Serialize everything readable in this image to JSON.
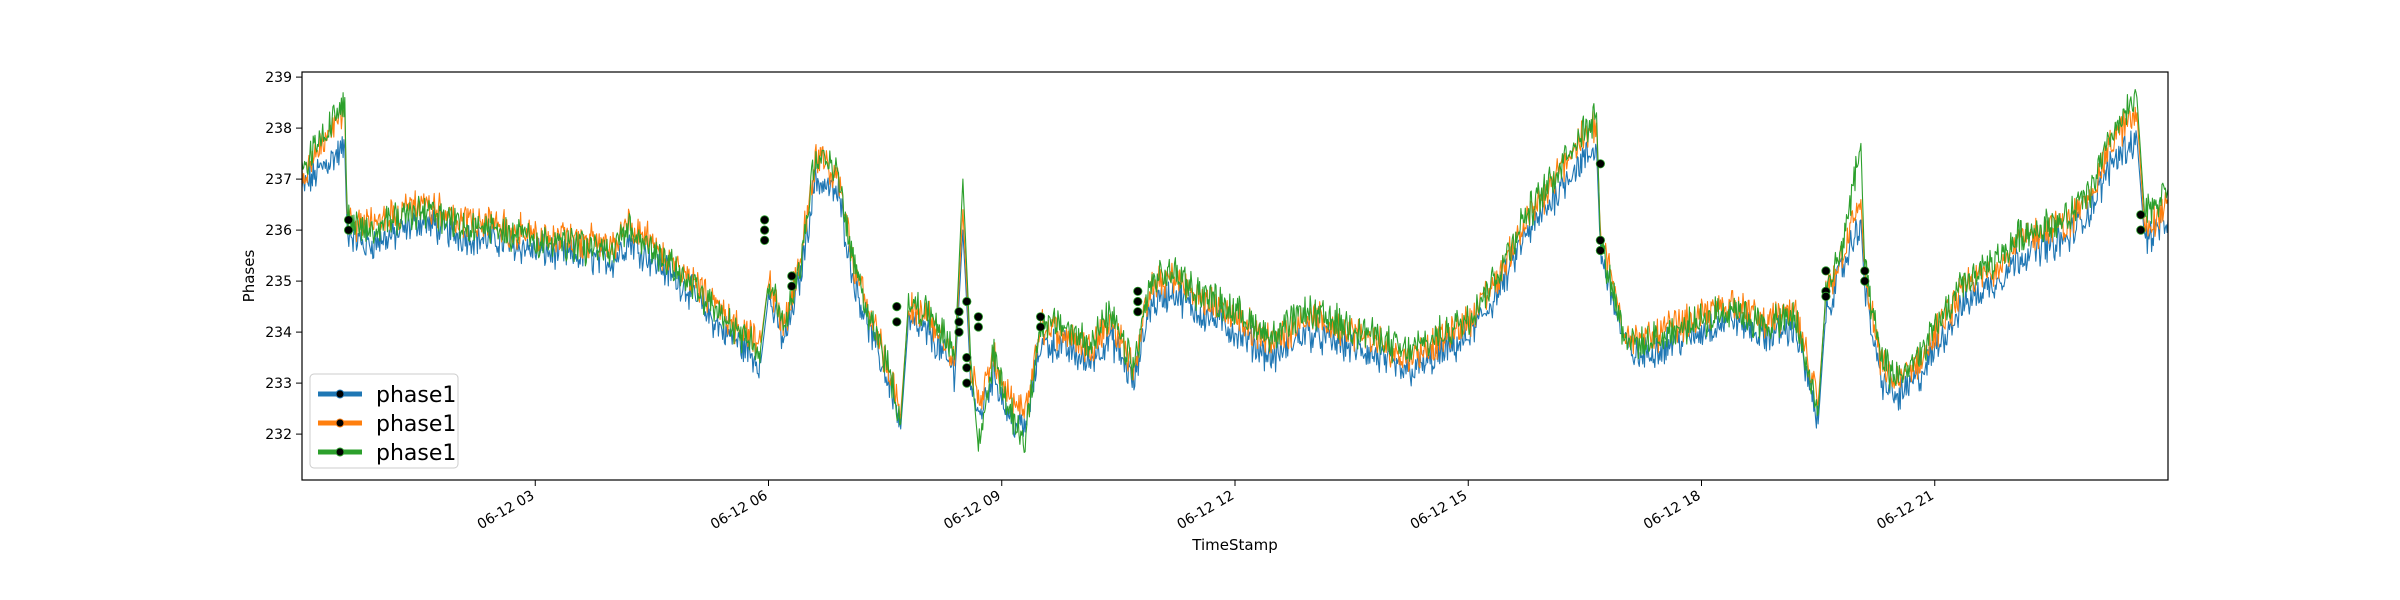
{
  "chart_data": {
    "type": "line",
    "xlabel": "TimeStamp",
    "ylabel": "Phases",
    "x_range_hours": [
      0,
      24
    ],
    "ylim": [
      231.1,
      239.1
    ],
    "x_ticks": [
      {
        "hour": 3,
        "label": "06-12 03"
      },
      {
        "hour": 6,
        "label": "06-12 06"
      },
      {
        "hour": 9,
        "label": "06-12 09"
      },
      {
        "hour": 12,
        "label": "06-12 12"
      },
      {
        "hour": 15,
        "label": "06-12 15"
      },
      {
        "hour": 18,
        "label": "06-12 18"
      },
      {
        "hour": 21,
        "label": "06-12 21"
      }
    ],
    "y_ticks": [
      232,
      233,
      234,
      235,
      236,
      237,
      238,
      239
    ],
    "grid": false,
    "legend_position": "lower-left",
    "series": [
      {
        "name": "phase1",
        "color": "#1f77b4",
        "points": [
          [
            0,
            236.8
          ],
          [
            0.3,
            237.3
          ],
          [
            0.55,
            237.6
          ],
          [
            0.58,
            236.0
          ],
          [
            0.8,
            235.7
          ],
          [
            1.2,
            235.9
          ],
          [
            1.5,
            236.2
          ],
          [
            2,
            235.9
          ],
          [
            2.5,
            235.8
          ],
          [
            3,
            235.6
          ],
          [
            3.5,
            235.5
          ],
          [
            4,
            235.4
          ],
          [
            4.2,
            235.8
          ],
          [
            4.6,
            235.3
          ],
          [
            5,
            234.8
          ],
          [
            5.3,
            234.2
          ],
          [
            5.6,
            233.8
          ],
          [
            5.9,
            233.4
          ],
          [
            6.0,
            234.7
          ],
          [
            6.2,
            233.8
          ],
          [
            6.4,
            235.0
          ],
          [
            6.6,
            237.0
          ],
          [
            6.9,
            236.7
          ],
          [
            7.1,
            235.0
          ],
          [
            7.4,
            233.6
          ],
          [
            7.6,
            232.8
          ],
          [
            7.7,
            232.1
          ],
          [
            7.8,
            234.2
          ],
          [
            8.1,
            233.9
          ],
          [
            8.4,
            233.2
          ],
          [
            8.5,
            236.0
          ],
          [
            8.6,
            233.1
          ],
          [
            8.7,
            232.3
          ],
          [
            8.9,
            233.2
          ],
          [
            9.1,
            232.3
          ],
          [
            9.3,
            232.1
          ],
          [
            9.5,
            233.8
          ],
          [
            9.8,
            233.7
          ],
          [
            10.1,
            233.4
          ],
          [
            10.4,
            233.9
          ],
          [
            10.7,
            233.0
          ],
          [
            10.9,
            234.5
          ],
          [
            11.2,
            234.8
          ],
          [
            11.5,
            234.4
          ],
          [
            11.8,
            234.2
          ],
          [
            12.1,
            233.9
          ],
          [
            12.5,
            233.5
          ],
          [
            12.9,
            234.0
          ],
          [
            13.3,
            233.8
          ],
          [
            13.7,
            233.6
          ],
          [
            14.2,
            233.2
          ],
          [
            14.6,
            233.5
          ],
          [
            15,
            233.9
          ],
          [
            15.4,
            234.8
          ],
          [
            15.7,
            235.8
          ],
          [
            16,
            236.4
          ],
          [
            16.3,
            237.1
          ],
          [
            16.65,
            237.6
          ],
          [
            16.7,
            235.6
          ],
          [
            17.0,
            233.8
          ],
          [
            17.2,
            233.5
          ],
          [
            17.6,
            233.8
          ],
          [
            18,
            234.0
          ],
          [
            18.4,
            234.3
          ],
          [
            18.8,
            233.9
          ],
          [
            19.2,
            234.1
          ],
          [
            19.5,
            232.2
          ],
          [
            19.6,
            234.4
          ],
          [
            19.8,
            235.2
          ],
          [
            20.05,
            236.2
          ],
          [
            20.1,
            234.8
          ],
          [
            20.3,
            233.1
          ],
          [
            20.5,
            232.7
          ],
          [
            20.8,
            233.1
          ],
          [
            21.1,
            233.9
          ],
          [
            21.4,
            234.6
          ],
          [
            21.8,
            235.0
          ],
          [
            22.1,
            235.5
          ],
          [
            22.4,
            235.7
          ],
          [
            22.7,
            235.8
          ],
          [
            23,
            236.4
          ],
          [
            23.3,
            237.4
          ],
          [
            23.6,
            237.8
          ],
          [
            23.7,
            235.8
          ],
          [
            24,
            236.2
          ]
        ]
      },
      {
        "name": "phase1",
        "color": "#ff7f0e",
        "points": [
          [
            0,
            237.0
          ],
          [
            0.3,
            237.7
          ],
          [
            0.55,
            238.3
          ],
          [
            0.58,
            236.2
          ],
          [
            0.8,
            236.1
          ],
          [
            1.2,
            236.3
          ],
          [
            1.5,
            236.5
          ],
          [
            2,
            236.2
          ],
          [
            2.5,
            236.1
          ],
          [
            3,
            235.9
          ],
          [
            3.5,
            235.8
          ],
          [
            4,
            235.7
          ],
          [
            4.2,
            236.1
          ],
          [
            4.6,
            235.6
          ],
          [
            5,
            235.1
          ],
          [
            5.3,
            234.5
          ],
          [
            5.6,
            234.1
          ],
          [
            5.9,
            233.8
          ],
          [
            6.0,
            235.0
          ],
          [
            6.2,
            234.1
          ],
          [
            6.4,
            235.3
          ],
          [
            6.6,
            237.4
          ],
          [
            6.9,
            237.0
          ],
          [
            7.1,
            235.3
          ],
          [
            7.4,
            233.9
          ],
          [
            7.6,
            233.1
          ],
          [
            7.7,
            232.4
          ],
          [
            7.8,
            234.5
          ],
          [
            8.1,
            234.2
          ],
          [
            8.4,
            233.5
          ],
          [
            8.5,
            236.4
          ],
          [
            8.6,
            233.4
          ],
          [
            8.7,
            232.6
          ],
          [
            8.9,
            233.5
          ],
          [
            9.1,
            232.6
          ],
          [
            9.3,
            232.4
          ],
          [
            9.5,
            234.1
          ],
          [
            9.8,
            234.0
          ],
          [
            10.1,
            233.7
          ],
          [
            10.4,
            234.2
          ],
          [
            10.7,
            233.3
          ],
          [
            10.9,
            234.8
          ],
          [
            11.2,
            235.1
          ],
          [
            11.5,
            234.7
          ],
          [
            11.8,
            234.5
          ],
          [
            12.1,
            234.2
          ],
          [
            12.5,
            233.8
          ],
          [
            12.9,
            234.3
          ],
          [
            13.3,
            234.1
          ],
          [
            13.7,
            233.9
          ],
          [
            14.2,
            233.5
          ],
          [
            14.6,
            233.8
          ],
          [
            15,
            234.2
          ],
          [
            15.4,
            235.1
          ],
          [
            15.7,
            236.1
          ],
          [
            16,
            236.7
          ],
          [
            16.3,
            237.5
          ],
          [
            16.65,
            238.1
          ],
          [
            16.7,
            235.9
          ],
          [
            17.0,
            234.1
          ],
          [
            17.2,
            233.8
          ],
          [
            17.6,
            234.1
          ],
          [
            18,
            234.3
          ],
          [
            18.4,
            234.6
          ],
          [
            18.8,
            234.2
          ],
          [
            19.2,
            234.4
          ],
          [
            19.5,
            232.6
          ],
          [
            19.6,
            234.7
          ],
          [
            19.8,
            235.5
          ],
          [
            20.05,
            236.6
          ],
          [
            20.1,
            235.1
          ],
          [
            20.3,
            233.4
          ],
          [
            20.5,
            233.0
          ],
          [
            20.8,
            233.4
          ],
          [
            21.1,
            234.2
          ],
          [
            21.4,
            234.9
          ],
          [
            21.8,
            235.3
          ],
          [
            22.1,
            235.8
          ],
          [
            22.4,
            236.0
          ],
          [
            22.7,
            236.1
          ],
          [
            23,
            236.7
          ],
          [
            23.3,
            237.8
          ],
          [
            23.6,
            238.3
          ],
          [
            23.7,
            236.0
          ],
          [
            24,
            236.5
          ]
        ]
      },
      {
        "name": "phase1",
        "color": "#2ca02c",
        "points": [
          [
            0,
            237.2
          ],
          [
            0.3,
            237.9
          ],
          [
            0.55,
            238.6
          ],
          [
            0.58,
            236.2
          ],
          [
            0.8,
            236.0
          ],
          [
            1.2,
            236.2
          ],
          [
            1.5,
            236.4
          ],
          [
            2,
            236.1
          ],
          [
            2.5,
            236.0
          ],
          [
            3,
            235.8
          ],
          [
            3.5,
            235.7
          ],
          [
            4,
            235.6
          ],
          [
            4.2,
            236.0
          ],
          [
            4.6,
            235.5
          ],
          [
            5,
            235.0
          ],
          [
            5.3,
            234.4
          ],
          [
            5.6,
            234.0
          ],
          [
            5.9,
            233.7
          ],
          [
            6.0,
            235.0
          ],
          [
            6.2,
            234.1
          ],
          [
            6.4,
            235.3
          ],
          [
            6.6,
            237.5
          ],
          [
            6.9,
            237.1
          ],
          [
            7.1,
            235.3
          ],
          [
            7.4,
            233.9
          ],
          [
            7.6,
            233.0
          ],
          [
            7.7,
            232.2
          ],
          [
            7.8,
            234.6
          ],
          [
            8.1,
            234.3
          ],
          [
            8.4,
            233.6
          ],
          [
            8.5,
            237.0
          ],
          [
            8.6,
            233.5
          ],
          [
            8.7,
            231.7
          ],
          [
            8.9,
            233.6
          ],
          [
            9.1,
            232.4
          ],
          [
            9.3,
            231.9
          ],
          [
            9.5,
            234.2
          ],
          [
            9.8,
            234.1
          ],
          [
            10.1,
            233.8
          ],
          [
            10.4,
            234.3
          ],
          [
            10.7,
            233.3
          ],
          [
            10.9,
            234.9
          ],
          [
            11.2,
            235.2
          ],
          [
            11.5,
            234.8
          ],
          [
            11.8,
            234.6
          ],
          [
            12.1,
            234.3
          ],
          [
            12.5,
            233.9
          ],
          [
            12.9,
            234.4
          ],
          [
            13.3,
            234.2
          ],
          [
            13.7,
            234.0
          ],
          [
            14.2,
            233.6
          ],
          [
            14.6,
            233.9
          ],
          [
            15,
            234.3
          ],
          [
            15.4,
            235.2
          ],
          [
            15.7,
            236.2
          ],
          [
            16,
            236.8
          ],
          [
            16.3,
            237.6
          ],
          [
            16.65,
            238.3
          ],
          [
            16.7,
            235.8
          ],
          [
            17.0,
            234.0
          ],
          [
            17.2,
            233.7
          ],
          [
            17.6,
            234.0
          ],
          [
            18,
            234.2
          ],
          [
            18.4,
            234.5
          ],
          [
            18.8,
            234.1
          ],
          [
            19.2,
            234.3
          ],
          [
            19.5,
            232.4
          ],
          [
            19.6,
            234.8
          ],
          [
            19.8,
            235.6
          ],
          [
            20.05,
            237.7
          ],
          [
            20.1,
            235.2
          ],
          [
            20.3,
            233.5
          ],
          [
            20.5,
            233.1
          ],
          [
            20.8,
            233.5
          ],
          [
            21.1,
            234.3
          ],
          [
            21.4,
            235.0
          ],
          [
            21.8,
            235.4
          ],
          [
            22.1,
            235.9
          ],
          [
            22.4,
            236.1
          ],
          [
            22.7,
            236.2
          ],
          [
            23,
            236.8
          ],
          [
            23.3,
            237.9
          ],
          [
            23.6,
            238.6
          ],
          [
            23.7,
            236.3
          ],
          [
            24,
            236.8
          ]
        ]
      }
    ],
    "anomaly_markers": {
      "color": "#000000",
      "points": [
        [
          0.6,
          236.2
        ],
        [
          0.6,
          236.0
        ],
        [
          5.95,
          236.2
        ],
        [
          5.95,
          236.0
        ],
        [
          5.95,
          235.8
        ],
        [
          6.3,
          235.1
        ],
        [
          6.3,
          234.9
        ],
        [
          7.65,
          234.5
        ],
        [
          7.65,
          234.2
        ],
        [
          8.45,
          234.4
        ],
        [
          8.45,
          234.2
        ],
        [
          8.45,
          234.0
        ],
        [
          8.55,
          234.6
        ],
        [
          8.55,
          233.5
        ],
        [
          8.55,
          233.3
        ],
        [
          8.55,
          233.0
        ],
        [
          8.7,
          234.3
        ],
        [
          8.7,
          234.1
        ],
        [
          9.5,
          234.3
        ],
        [
          9.5,
          234.1
        ],
        [
          10.75,
          234.8
        ],
        [
          10.75,
          234.6
        ],
        [
          10.75,
          234.4
        ],
        [
          16.7,
          237.3
        ],
        [
          16.7,
          235.8
        ],
        [
          16.7,
          235.6
        ],
        [
          19.6,
          235.2
        ],
        [
          19.6,
          234.8
        ],
        [
          19.6,
          234.7
        ],
        [
          20.1,
          235.2
        ],
        [
          20.1,
          235.0
        ],
        [
          23.65,
          236.3
        ],
        [
          23.65,
          236.0
        ]
      ]
    }
  }
}
